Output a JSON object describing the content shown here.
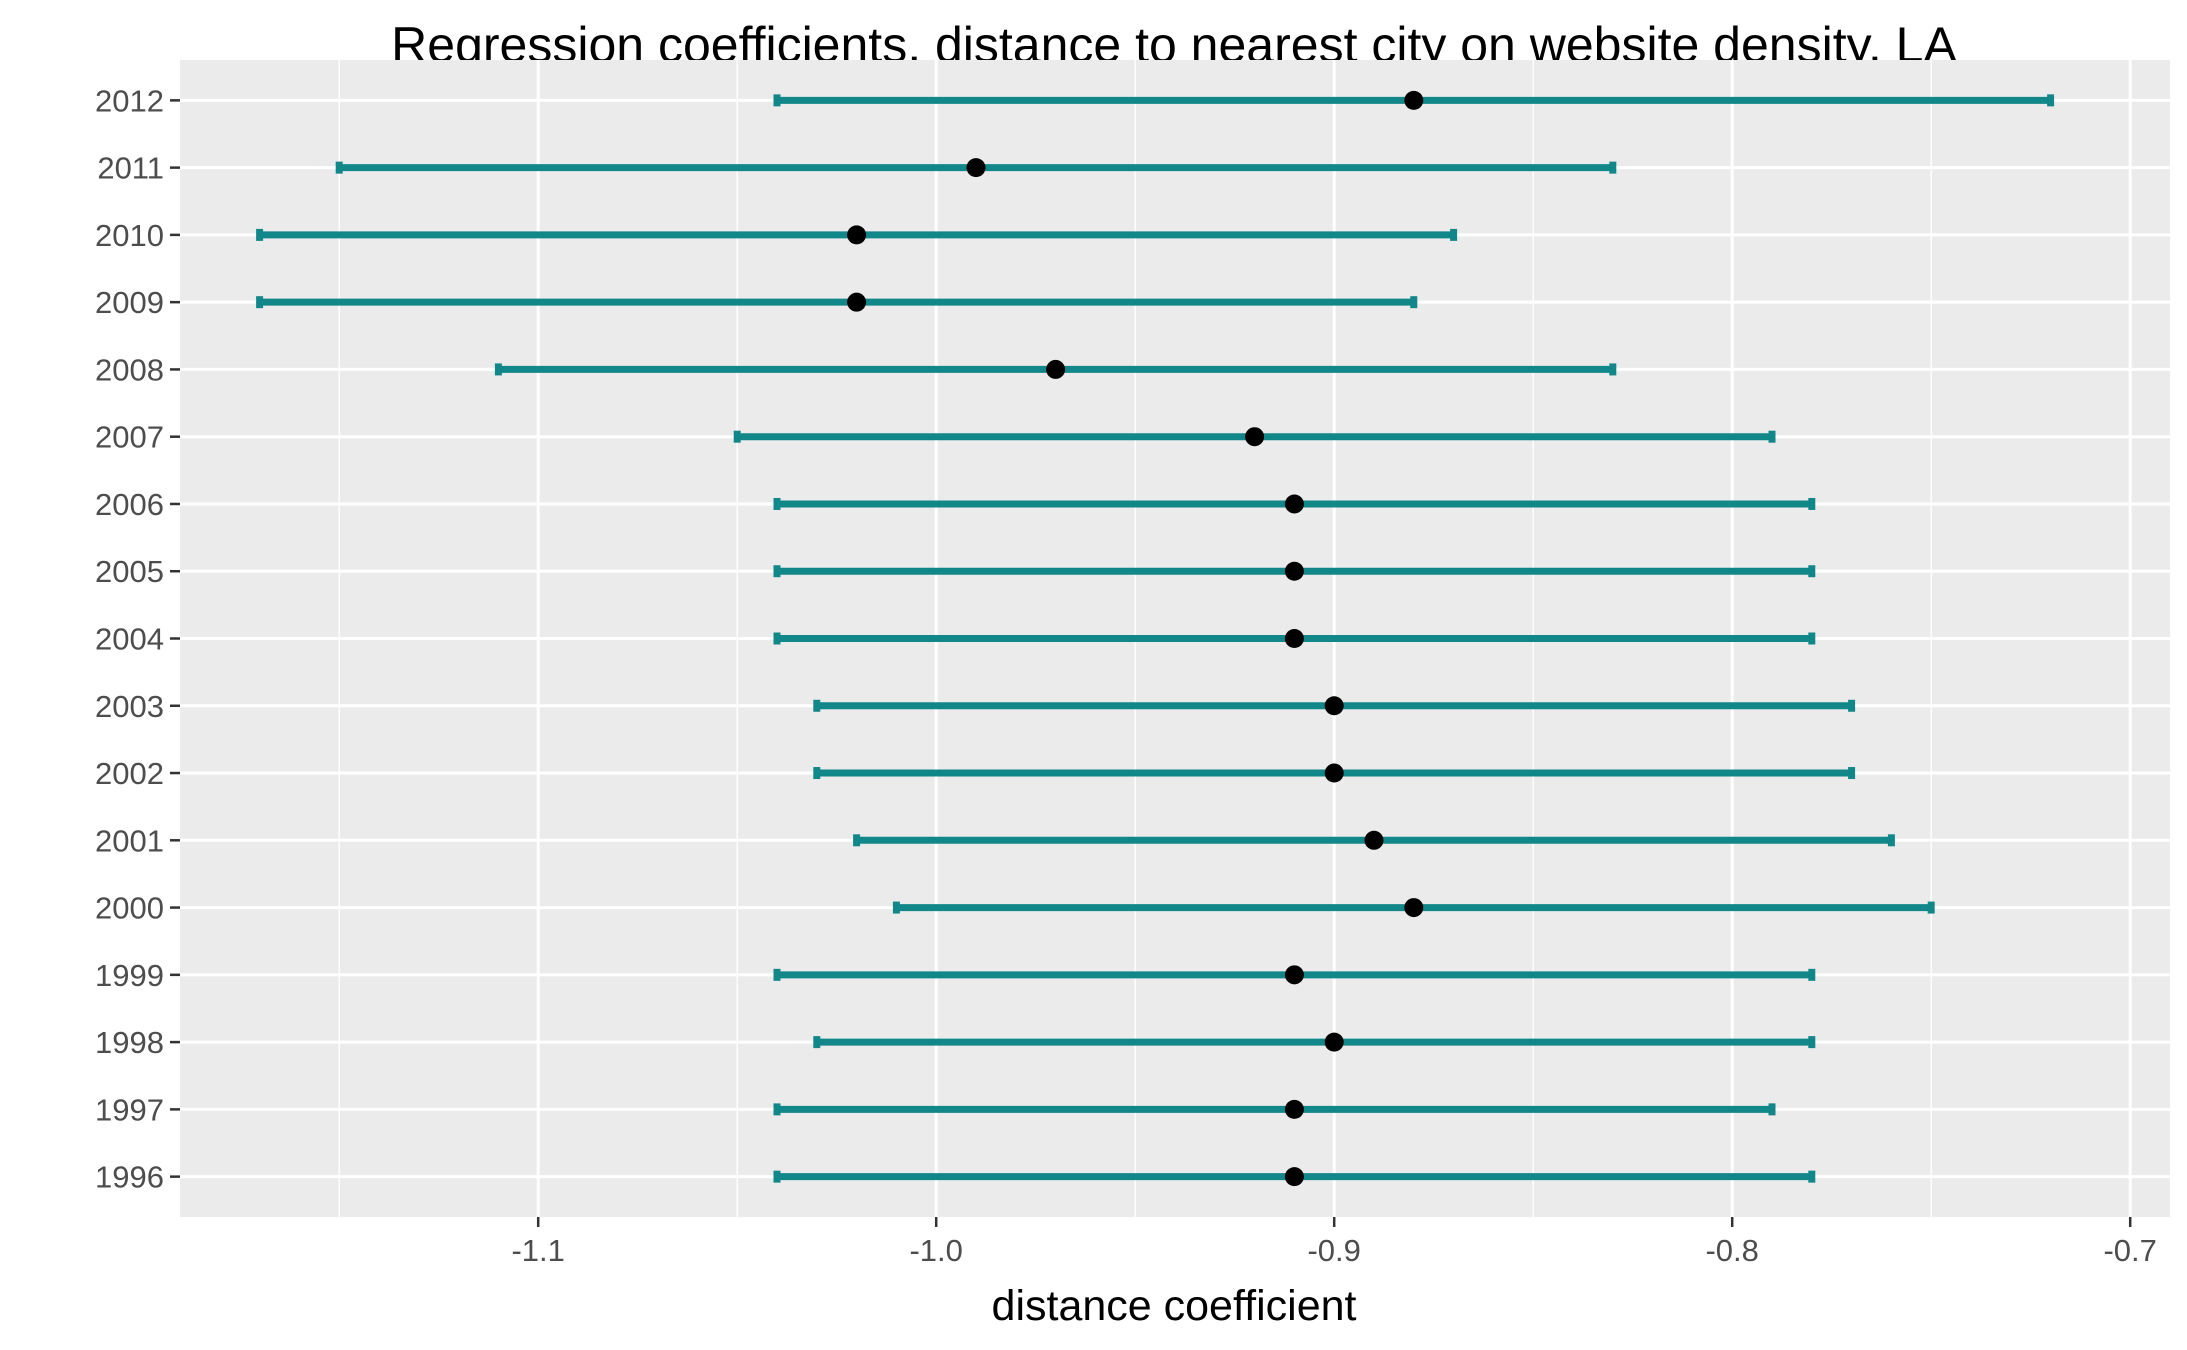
{
  "chart_data": {
    "type": "errorbar",
    "title": "Regression coefficients, distance to nearest city on website density, LA",
    "xlabel": "distance coefficient",
    "ylabel": "",
    "xlim": [
      -1.19,
      -0.69
    ],
    "x_ticks": [
      -1.1,
      -1.0,
      -0.9,
      -0.8,
      -0.7
    ],
    "x_tick_labels": [
      "-1.1",
      "-1.0",
      "-0.9",
      "-0.8",
      "-0.7"
    ],
    "grid": true,
    "legend": "none",
    "colors": {
      "panel_background": "#ebebeb",
      "grid": "#ffffff",
      "error_bar": "#11878a",
      "point": "#000000",
      "tick_text": "#4d4d4d"
    },
    "categories": [
      "1996",
      "1997",
      "1998",
      "1999",
      "2000",
      "2001",
      "2002",
      "2003",
      "2004",
      "2005",
      "2006",
      "2007",
      "2008",
      "2009",
      "2010",
      "2011",
      "2012"
    ],
    "estimate": [
      -0.91,
      -0.91,
      -0.9,
      -0.91,
      -0.88,
      -0.89,
      -0.9,
      -0.9,
      -0.91,
      -0.91,
      -0.91,
      -0.92,
      -0.97,
      -1.02,
      -1.02,
      -0.99,
      -0.88
    ],
    "lower": [
      -1.04,
      -1.04,
      -1.03,
      -1.04,
      -1.01,
      -1.02,
      -1.03,
      -1.03,
      -1.04,
      -1.04,
      -1.04,
      -1.05,
      -1.11,
      -1.17,
      -1.17,
      -1.15,
      -1.04
    ],
    "upper": [
      -0.78,
      -0.79,
      -0.78,
      -0.78,
      -0.75,
      -0.76,
      -0.77,
      -0.77,
      -0.78,
      -0.78,
      -0.78,
      -0.79,
      -0.83,
      -0.88,
      -0.87,
      -0.83,
      -0.72
    ]
  }
}
